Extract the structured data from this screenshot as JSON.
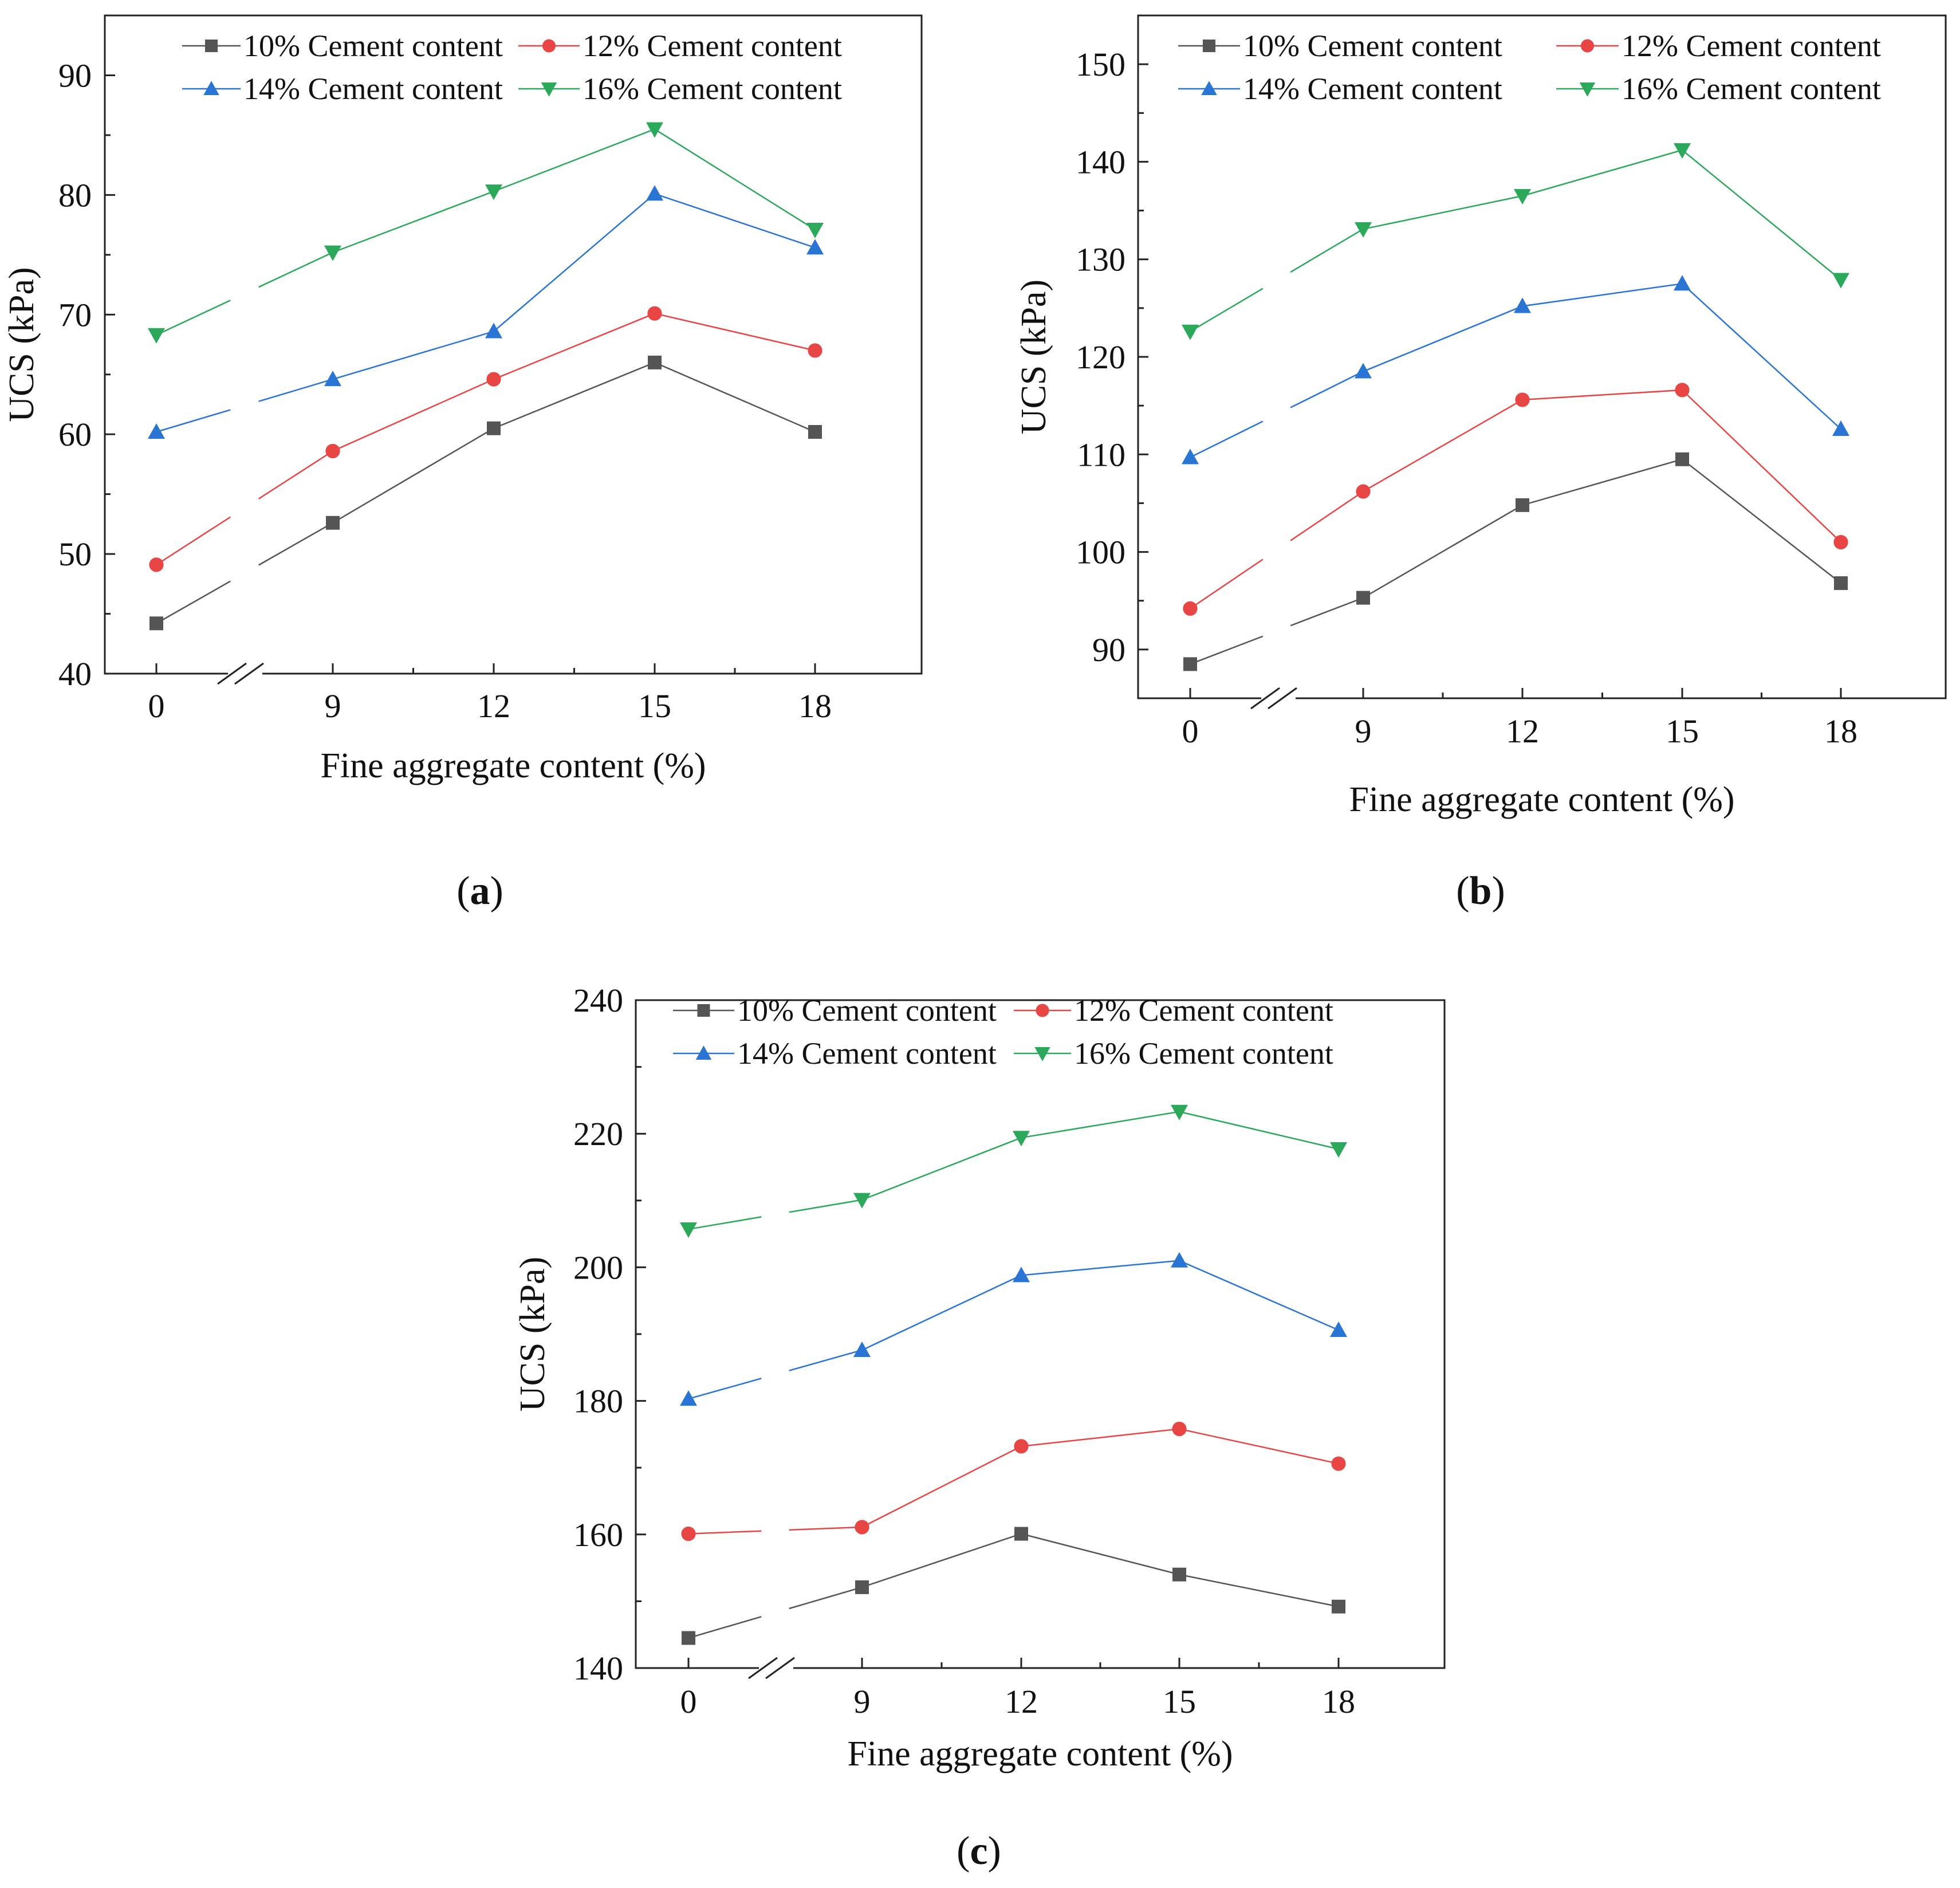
{
  "chart_data": [
    {
      "type": "line",
      "panel_label": "a",
      "xlabel": "Fine aggregate content (%)",
      "ylabel": "UCS (kPa)",
      "categories": [
        "0",
        "9",
        "12",
        "15",
        "18"
      ],
      "ylim": [
        40,
        95
      ],
      "yticks": [
        40,
        50,
        60,
        70,
        80,
        90
      ],
      "axis_break": "between 0 and 9",
      "legend": "top",
      "series": [
        {
          "name": "10% Cement content",
          "marker": "square",
          "color": "#555555",
          "values": [
            44.2,
            52.6,
            60.5,
            66.0,
            60.2
          ]
        },
        {
          "name": "12% Cement content",
          "marker": "circle",
          "color": "#e84545",
          "values": [
            49.1,
            58.6,
            64.6,
            70.1,
            67.0
          ]
        },
        {
          "name": "14% Cement content",
          "marker": "triangle-up",
          "color": "#2a75d3",
          "values": [
            60.2,
            64.6,
            68.6,
            80.1,
            75.6
          ]
        },
        {
          "name": "16% Cement content",
          "marker": "triangle-down",
          "color": "#2ca85a",
          "values": [
            68.3,
            75.2,
            80.3,
            85.5,
            77.1
          ]
        }
      ]
    },
    {
      "type": "line",
      "panel_label": "b",
      "xlabel": "Fine aggregate content (%)",
      "ylabel": "UCS (kPa)",
      "categories": [
        "0",
        "9",
        "12",
        "15",
        "18"
      ],
      "ylim": [
        85,
        155
      ],
      "yticks": [
        90,
        100,
        110,
        120,
        130,
        140,
        150
      ],
      "axis_break": "between 0 and 9",
      "legend": "top",
      "series": [
        {
          "name": "10% Cement content",
          "marker": "square",
          "color": "#555555",
          "values": [
            88.5,
            95.3,
            104.8,
            109.5,
            96.8
          ]
        },
        {
          "name": "12% Cement content",
          "marker": "circle",
          "color": "#e84545",
          "values": [
            94.2,
            106.2,
            115.6,
            116.6,
            101.0
          ]
        },
        {
          "name": "14% Cement content",
          "marker": "triangle-up",
          "color": "#2a75d3",
          "values": [
            109.7,
            118.5,
            125.2,
            127.5,
            112.6
          ]
        },
        {
          "name": "16% Cement content",
          "marker": "triangle-down",
          "color": "#2ca85a",
          "values": [
            122.6,
            133.1,
            136.5,
            141.2,
            127.9
          ]
        }
      ]
    },
    {
      "type": "line",
      "panel_label": "c",
      "xlabel": "Fine aggregate content (%)",
      "ylabel": "UCS (kPa)",
      "categories": [
        "0",
        "9",
        "12",
        "15",
        "18"
      ],
      "ylim": [
        140,
        240
      ],
      "yticks": [
        140,
        160,
        180,
        200,
        220,
        240
      ],
      "axis_break": "between 0 and 9",
      "legend": "top",
      "series": [
        {
          "name": "10% Cement content",
          "marker": "square",
          "color": "#555555",
          "values": [
            144.5,
            152.1,
            160.1,
            154.0,
            149.2
          ]
        },
        {
          "name": "12% Cement content",
          "marker": "circle",
          "color": "#e84545",
          "values": [
            160.1,
            161.1,
            173.2,
            175.8,
            170.6
          ]
        },
        {
          "name": "14% Cement content",
          "marker": "triangle-up",
          "color": "#2a75d3",
          "values": [
            180.3,
            187.6,
            198.8,
            201.0,
            190.6
          ]
        },
        {
          "name": "16% Cement content",
          "marker": "triangle-down",
          "color": "#2ca85a",
          "values": [
            205.7,
            210.1,
            219.4,
            223.3,
            217.7
          ]
        }
      ]
    }
  ]
}
